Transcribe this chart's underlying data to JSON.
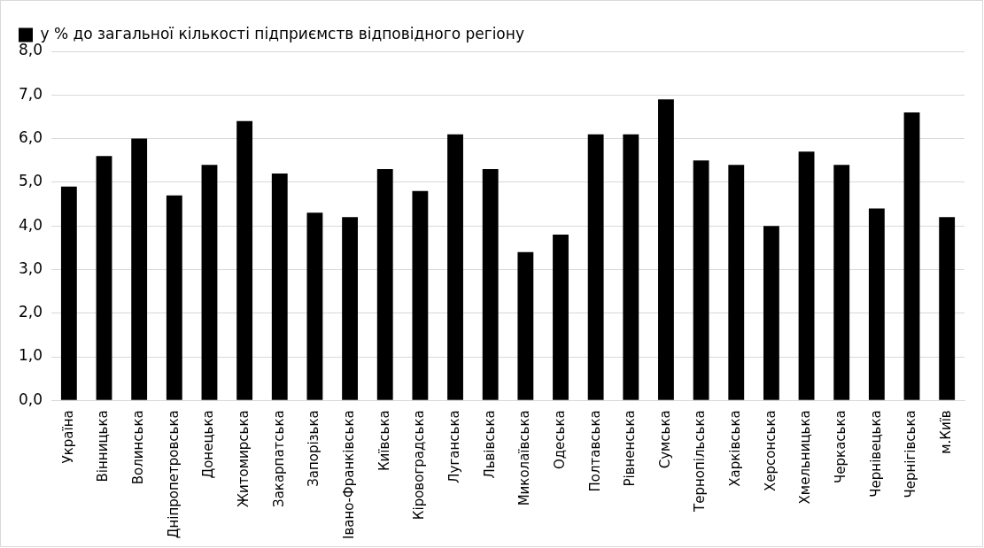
{
  "chart_data": {
    "type": "bar",
    "categories": [
      "Україна",
      "Вінницька",
      "Волинська",
      "Дніпропетровська",
      "Донецька",
      "Житомирська",
      "Закарпатська",
      "Запорізька",
      "Івано-Франківська",
      "Київська",
      "Кіровоградська",
      "Луганська",
      "Львівська",
      "Миколаївська",
      "Одеська",
      "Полтавська",
      "Рівненська",
      "Сумська",
      "Тернопільська",
      "Харківська",
      "Херсонська",
      "Хмельницька",
      "Черкаська",
      "Чернівецька",
      "Чернігівська",
      "м.Київ"
    ],
    "series": [
      {
        "name": "у % до загальної кількості підприємств відповідного регіону",
        "color": "#000000",
        "values": [
          4.9,
          5.6,
          6.0,
          4.7,
          5.4,
          6.4,
          5.2,
          4.3,
          4.2,
          5.3,
          4.8,
          6.1,
          5.3,
          3.4,
          3.8,
          6.1,
          6.1,
          6.9,
          5.5,
          5.4,
          4.0,
          5.7,
          5.4,
          4.4,
          6.6,
          4.2
        ]
      }
    ],
    "ylim": [
      0,
      8
    ],
    "yticks": [
      {
        "value": 0,
        "label": "0,0"
      },
      {
        "value": 1,
        "label": "1,0"
      },
      {
        "value": 2,
        "label": "2,0"
      },
      {
        "value": 3,
        "label": "3,0"
      },
      {
        "value": 4,
        "label": "4,0"
      },
      {
        "value": 5,
        "label": "5,0"
      },
      {
        "value": 6,
        "label": "6,0"
      },
      {
        "value": 7,
        "label": "7,0"
      },
      {
        "value": 8,
        "label": "8,0"
      }
    ],
    "grid": "y",
    "legend": "top left"
  }
}
